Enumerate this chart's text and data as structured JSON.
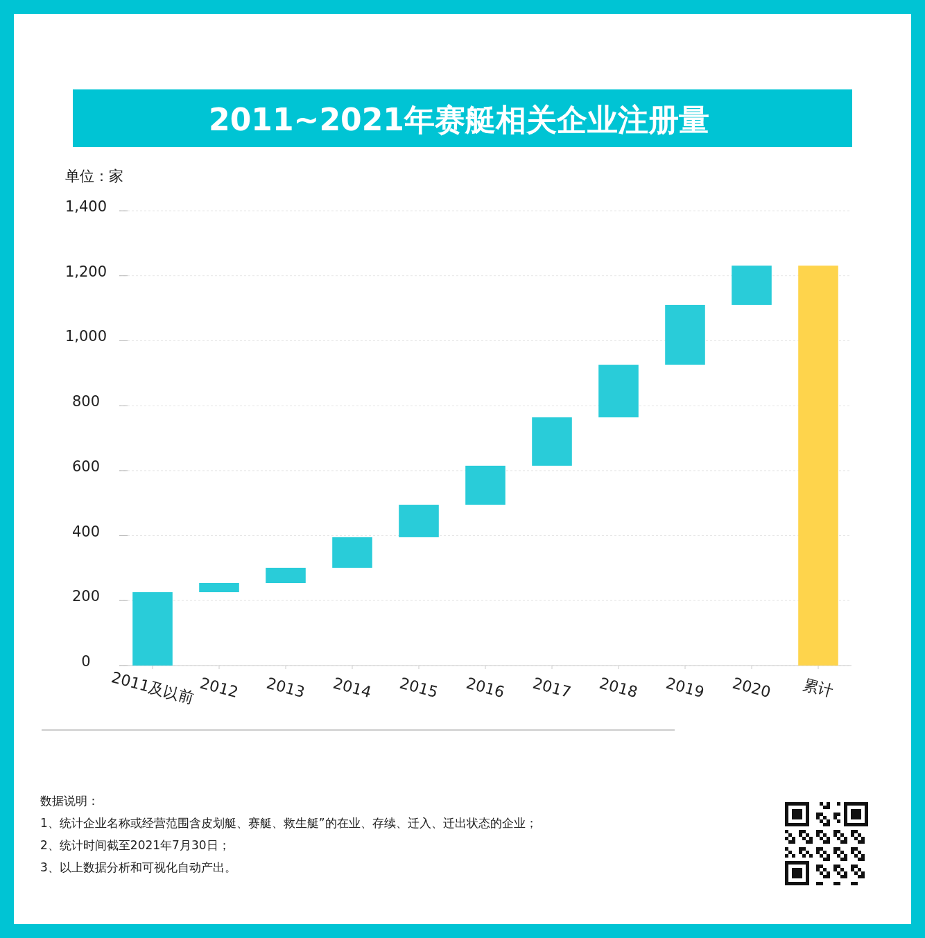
{
  "chart_data": {
    "type": "bar",
    "title": "2011~2021年赛艇相关企业注册量",
    "ylabel": "单位：家",
    "categories": [
      "2011及以前",
      "2012",
      "2013",
      "2014",
      "2015",
      "2016",
      "2017",
      "2018",
      "2019",
      "2020",
      "累计"
    ],
    "values": [
      226,
      28,
      47,
      94,
      100,
      120,
      149,
      162,
      184,
      121,
      1231
    ],
    "base": [
      0,
      226,
      254,
      301,
      395,
      495,
      615,
      764,
      926,
      1110,
      0
    ],
    "colors": [
      "#29ccd9",
      "#29ccd9",
      "#29ccd9",
      "#29ccd9",
      "#29ccd9",
      "#29ccd9",
      "#29ccd9",
      "#29ccd9",
      "#29ccd9",
      "#29ccd9",
      "#fed44c"
    ],
    "ylim": [
      0,
      1400
    ],
    "yticks": [
      0,
      200,
      400,
      600,
      800,
      {
        "value": 1000,
        "label": "1,000"
      },
      {
        "value": 1200,
        "label": "1,200"
      },
      {
        "value": 1400,
        "label": "1,400"
      }
    ],
    "grid": "y",
    "annotations": [
      "数据说明：",
      "1、统计企业名称或经营范围含皮划艇、赛艇、救生艇”的在业、存续、迁入、迁出状态的企业；",
      "2、统计时间截至2021年7月30日；",
      "3、以上数据分析和可视化自动产出。"
    ]
  }
}
